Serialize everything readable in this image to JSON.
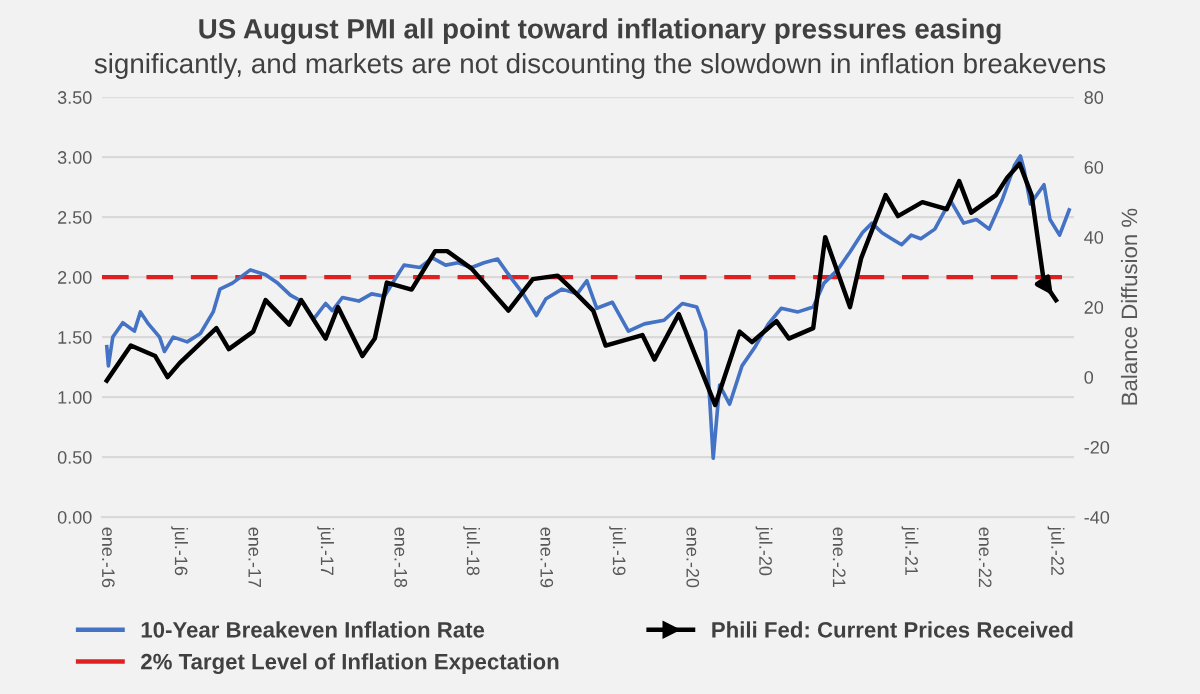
{
  "chart_data": {
    "type": "line",
    "title": "US August PMI all point toward inflationary pressures easing",
    "subtitle": "significantly, and markets are not discounting the slowdown in inflation breakevens",
    "y2label": "Balance Diffusion %",
    "xlim": [
      "2015-12-20",
      "2022-08-15"
    ],
    "xticks": [
      {
        "value": "2016-01",
        "label": "ene.-16"
      },
      {
        "value": "2016-07",
        "label": "jul.-16"
      },
      {
        "value": "2017-01",
        "label": "ene.-17"
      },
      {
        "value": "2017-07",
        "label": "jul.-17"
      },
      {
        "value": "2018-01",
        "label": "ene.-18"
      },
      {
        "value": "2018-07",
        "label": "jul.-18"
      },
      {
        "value": "2019-01",
        "label": "ene.-19"
      },
      {
        "value": "2019-07",
        "label": "jul.-19"
      },
      {
        "value": "2020-01",
        "label": "ene.-20"
      },
      {
        "value": "2020-07",
        "label": "jul.-20"
      },
      {
        "value": "2021-01",
        "label": "ene.-21"
      },
      {
        "value": "2021-07",
        "label": "jul.-21"
      },
      {
        "value": "2022-01",
        "label": "ene.-22"
      },
      {
        "value": "2022-07",
        "label": "jul.-22"
      }
    ],
    "ylim": [
      0,
      3.5
    ],
    "yticks": [
      {
        "value": 0,
        "label": "0.00"
      },
      {
        "value": 0.5,
        "label": "0.50"
      },
      {
        "value": 1,
        "label": "1.00"
      },
      {
        "value": 1.5,
        "label": "1.50"
      },
      {
        "value": 2,
        "label": "2.00"
      },
      {
        "value": 2.5,
        "label": "2.50"
      },
      {
        "value": 3,
        "label": "3.00"
      },
      {
        "value": 3.5,
        "label": "3.50"
      }
    ],
    "y2lim": [
      -40,
      80
    ],
    "y2ticks": [
      -40,
      -20,
      0,
      20,
      40,
      60,
      80
    ],
    "grid": "y",
    "legend": "bottom",
    "series": [
      {
        "name": "10-Year Breakeven Inflation Rate",
        "color": "#4472c4",
        "x": [
          "2016-01-01",
          "2016-01-05",
          "2016-01-16",
          "2016-02-10",
          "2016-03-10",
          "2016-03-25",
          "2016-04-14",
          "2016-05-12",
          "2016-05-24",
          "2016-06-15",
          "2016-07-20",
          "2016-08-22",
          "2016-09-23",
          "2016-10-10",
          "2016-11-10",
          "2016-12-25",
          "2017-02-01",
          "2017-03-03",
          "2017-04-04",
          "2017-05-06",
          "2017-06-01",
          "2017-07-01",
          "2017-07-18",
          "2017-08-12",
          "2017-09-22",
          "2017-10-24",
          "2017-11-25",
          "2017-12-19",
          "2018-01-13",
          "2018-02-22",
          "2018-03-25",
          "2018-04-27",
          "2018-05-28",
          "2018-07-01",
          "2018-08-01",
          "2018-09-04",
          "2018-10-06",
          "2018-11-07",
          "2018-12-10",
          "2019-01-03",
          "2019-02-12",
          "2019-03-22",
          "2019-04-15",
          "2019-05-10",
          "2019-06-18",
          "2019-07-28",
          "2019-09-06",
          "2019-10-25",
          "2019-12-10",
          "2020-01-15",
          "2020-02-06",
          "2020-02-25",
          "2020-03-12",
          "2020-04-06",
          "2020-05-07",
          "2020-06-09",
          "2020-07-12",
          "2020-08-13",
          "2020-09-24",
          "2020-11-01",
          "2020-11-28",
          "2021-01-01",
          "2021-02-01",
          "2021-03-04",
          "2021-03-28",
          "2021-04-22",
          "2021-05-16",
          "2021-06-10",
          "2021-07-04",
          "2021-07-28",
          "2021-09-01",
          "2021-10-10",
          "2021-11-12",
          "2021-12-14",
          "2022-01-15",
          "2022-02-16",
          "2022-03-19",
          "2022-04-03",
          "2022-04-12",
          "2022-04-28",
          "2022-06-01",
          "2022-06-16",
          "2022-07-10",
          "2022-08-03"
        ],
        "values": [
          1.42,
          1.26,
          1.5,
          1.62,
          1.55,
          1.71,
          1.61,
          1.5,
          1.38,
          1.5,
          1.46,
          1.53,
          1.71,
          1.9,
          1.95,
          2.06,
          2.02,
          1.95,
          1.85,
          1.79,
          1.65,
          1.78,
          1.72,
          1.83,
          1.8,
          1.86,
          1.84,
          1.97,
          2.1,
          2.08,
          2.16,
          2.1,
          2.12,
          2.08,
          2.12,
          2.15,
          2.0,
          1.86,
          1.68,
          1.82,
          1.9,
          1.86,
          1.97,
          1.74,
          1.79,
          1.55,
          1.61,
          1.64,
          1.78,
          1.75,
          1.55,
          0.49,
          1.1,
          0.94,
          1.26,
          1.42,
          1.61,
          1.74,
          1.71,
          1.75,
          1.95,
          2.06,
          2.21,
          2.37,
          2.45,
          2.37,
          2.32,
          2.27,
          2.35,
          2.32,
          2.4,
          2.64,
          2.45,
          2.48,
          2.4,
          2.64,
          2.93,
          3.01,
          2.9,
          2.61,
          2.77,
          2.48,
          2.35,
          2.56
        ]
      },
      {
        "name": "Phili Fed: Current Prices Received",
        "color": "#000000",
        "axis": "y2",
        "x": [
          "2016-01",
          "2016-03",
          "2016-05",
          "2016-06",
          "2016-07",
          "2016-10",
          "2016-11",
          "2017-01",
          "2017-02",
          "2017-04",
          "2017-05",
          "2017-07",
          "2017-08",
          "2017-10",
          "2017-11",
          "2017-12",
          "2018-02",
          "2018-04",
          "2018-05",
          "2018-07",
          "2018-10",
          "2018-12",
          "2019-02",
          "2019-03",
          "2019-05",
          "2019-06",
          "2019-09",
          "2019-10",
          "2019-12",
          "2020-03",
          "2020-05",
          "2020-06",
          "2020-08",
          "2020-09",
          "2020-11",
          "2020-12",
          "2021-02",
          "2021-03",
          "2021-05",
          "2021-06",
          "2021-08",
          "2021-10",
          "2021-11",
          "2021-12",
          "2022-02",
          "2022-03",
          "2022-04",
          "2022-05",
          "2022-06",
          "2022-07"
        ],
        "values": [
          -1,
          9,
          6,
          0,
          4,
          14,
          8,
          13,
          22,
          15,
          22,
          11,
          20,
          6,
          11,
          27,
          25,
          36,
          36,
          31,
          19,
          28,
          29,
          26,
          19,
          9,
          12,
          5,
          18,
          -8,
          13,
          10,
          16,
          11,
          14,
          40,
          20,
          34,
          52,
          46,
          50,
          48,
          56,
          47,
          52,
          57,
          61,
          52,
          27,
          22
        ]
      }
    ],
    "ref_lines": [
      {
        "axis": "y",
        "value": 2,
        "label": "2% Target Level of Inflation Expectation",
        "color": "#e02020",
        "line_style": "dashed"
      }
    ]
  }
}
